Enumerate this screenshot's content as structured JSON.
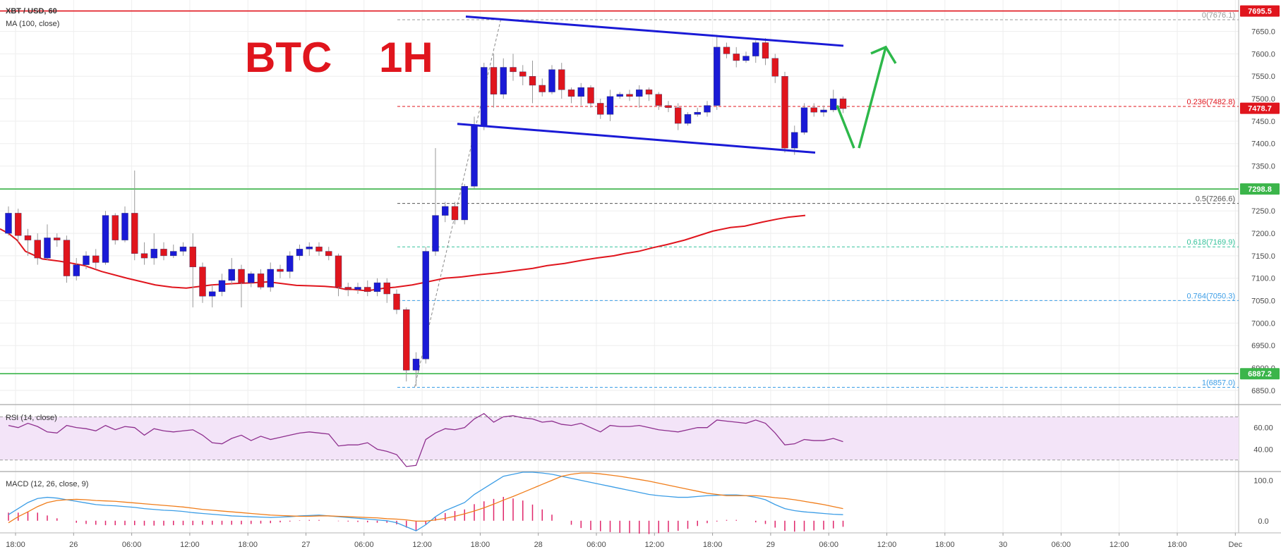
{
  "symbol_label": "XBT / USD, 60",
  "ma_label": "MA (100, close)",
  "annotation_text": "BTC    1H",
  "rsi_label": "RSI (14, close)",
  "macd_label": "MACD (12, 26, close, 9)",
  "colors": {
    "bull": "#1a1ad6",
    "bear": "#e0151d",
    "ma": "#e0151d",
    "support_resistance": "#3bb54a",
    "channel": "#1a1ad6",
    "arrow": "#2db84a",
    "rsi_line": "#8e2f8e",
    "rsi_band": "#f3e4f8",
    "macd_line": "#3b9de6",
    "signal_line": "#f07d1a",
    "hist": "#e0266b"
  },
  "chart_data": {
    "type": "candlestick",
    "x_tick_labels": [
      "18:00",
      "26",
      "06:00",
      "12:00",
      "18:00",
      "27",
      "06:00",
      "12:00",
      "18:00",
      "28",
      "06:00",
      "12:00",
      "18:00",
      "29",
      "06:00",
      "12:00",
      "18:00",
      "30",
      "06:00",
      "12:00",
      "18:00",
      "Dec"
    ],
    "price_axis": {
      "ylim": [
        6820,
        7720
      ],
      "ticks": [
        6850,
        6900,
        6950,
        7000,
        7050,
        7100,
        7150,
        7200,
        7250,
        7300,
        7350,
        7400,
        7450,
        7500,
        7550,
        7600,
        7650
      ]
    },
    "price_tags": [
      {
        "value": 7695.5,
        "label": "7695.5",
        "color": "#e0151d"
      },
      {
        "value": 7478.7,
        "label": "7478.7",
        "color": "#e0151d"
      },
      {
        "value": 7298.8,
        "label": "7298.8",
        "color": "#3bb54a"
      },
      {
        "value": 6887.2,
        "label": "6887.2",
        "color": "#3bb54a"
      }
    ],
    "horizontal_lines": [
      {
        "value": 7695.5,
        "color": "#e0151d"
      },
      {
        "value": 7298.8,
        "color": "#3bb54a"
      },
      {
        "value": 6887.2,
        "color": "#3bb54a"
      }
    ],
    "fib_levels": [
      {
        "label": "0(7676.1)",
        "value": 7676.1,
        "color": "#999999"
      },
      {
        "label": "0.236(7482.8)",
        "value": 7482.8,
        "color": "#e0151d"
      },
      {
        "label": "0.5(7266.6)",
        "value": 7266.6,
        "color": "#555555"
      },
      {
        "label": "0.618(7169.9)",
        "value": 7169.9,
        "color": "#35c29a"
      },
      {
        "label": "0.764(7050.3)",
        "value": 7050.3,
        "color": "#3b9de6"
      },
      {
        "label": "1(6857.0)",
        "value": 6857.0,
        "color": "#3b9de6"
      }
    ],
    "candles": [
      [
        7200,
        7245,
        7195,
        7260
      ],
      [
        7245,
        7195,
        7180,
        7255
      ],
      [
        7195,
        7185,
        7150,
        7210
      ],
      [
        7185,
        7145,
        7130,
        7200
      ],
      [
        7145,
        7190,
        7140,
        7220
      ],
      [
        7190,
        7185,
        7170,
        7200
      ],
      [
        7185,
        7105,
        7090,
        7195
      ],
      [
        7105,
        7130,
        7095,
        7145
      ],
      [
        7130,
        7150,
        7120,
        7160
      ],
      [
        7150,
        7135,
        7120,
        7165
      ],
      [
        7135,
        7240,
        7130,
        7250
      ],
      [
        7240,
        7185,
        7175,
        7245
      ],
      [
        7185,
        7245,
        7180,
        7260
      ],
      [
        7245,
        7155,
        7140,
        7340
      ],
      [
        7155,
        7145,
        7130,
        7180
      ],
      [
        7145,
        7165,
        7130,
        7200
      ],
      [
        7165,
        7150,
        7140,
        7180
      ],
      [
        7150,
        7160,
        7145,
        7175
      ],
      [
        7160,
        7170,
        7150,
        7180
      ],
      [
        7170,
        7125,
        7035,
        7200
      ],
      [
        7125,
        7060,
        7045,
        7135
      ],
      [
        7060,
        7070,
        7035,
        7085
      ],
      [
        7070,
        7095,
        7060,
        7110
      ],
      [
        7095,
        7120,
        7085,
        7145
      ],
      [
        7120,
        7090,
        7035,
        7130
      ],
      [
        7090,
        7110,
        7080,
        7115
      ],
      [
        7110,
        7080,
        7075,
        7120
      ],
      [
        7080,
        7120,
        7070,
        7135
      ],
      [
        7120,
        7115,
        7100,
        7130
      ],
      [
        7115,
        7150,
        7100,
        7160
      ],
      [
        7150,
        7165,
        7140,
        7175
      ],
      [
        7165,
        7170,
        7150,
        7180
      ],
      [
        7170,
        7160,
        7150,
        7180
      ],
      [
        7160,
        7150,
        7140,
        7170
      ],
      [
        7150,
        7080,
        7060,
        7155
      ],
      [
        7080,
        7075,
        7060,
        7090
      ],
      [
        7075,
        7080,
        7065,
        7090
      ],
      [
        7080,
        7070,
        7060,
        7095
      ],
      [
        7070,
        7090,
        7060,
        7100
      ],
      [
        7090,
        7065,
        7045,
        7100
      ],
      [
        7065,
        7030,
        7020,
        7075
      ],
      [
        7030,
        6895,
        6870,
        7035
      ],
      [
        6895,
        6920,
        6860,
        6935
      ],
      [
        6920,
        7160,
        6910,
        7170
      ],
      [
        7160,
        7240,
        7150,
        7390
      ],
      [
        7240,
        7260,
        7225,
        7270
      ],
      [
        7260,
        7230,
        7220,
        7270
      ],
      [
        7230,
        7305,
        7220,
        7310
      ],
      [
        7305,
        7440,
        7300,
        7460
      ],
      [
        7440,
        7570,
        7430,
        7580
      ],
      [
        7570,
        7510,
        7480,
        7600
      ],
      [
        7510,
        7570,
        7500,
        7590
      ],
      [
        7570,
        7560,
        7540,
        7600
      ],
      [
        7560,
        7550,
        7530,
        7575
      ],
      [
        7550,
        7530,
        7490,
        7585
      ],
      [
        7530,
        7515,
        7505,
        7545
      ],
      [
        7515,
        7565,
        7510,
        7575
      ],
      [
        7565,
        7520,
        7500,
        7580
      ],
      [
        7520,
        7505,
        7490,
        7525
      ],
      [
        7505,
        7525,
        7485,
        7535
      ],
      [
        7525,
        7490,
        7480,
        7530
      ],
      [
        7490,
        7465,
        7455,
        7500
      ],
      [
        7465,
        7505,
        7450,
        7520
      ],
      [
        7505,
        7510,
        7500,
        7515
      ],
      [
        7510,
        7505,
        7495,
        7520
      ],
      [
        7505,
        7520,
        7480,
        7530
      ],
      [
        7520,
        7510,
        7495,
        7525
      ],
      [
        7510,
        7485,
        7475,
        7515
      ],
      [
        7485,
        7480,
        7470,
        7495
      ],
      [
        7480,
        7445,
        7430,
        7490
      ],
      [
        7445,
        7465,
        7440,
        7470
      ],
      [
        7465,
        7470,
        7460,
        7480
      ],
      [
        7470,
        7485,
        7460,
        7495
      ],
      [
        7485,
        7615,
        7475,
        7640
      ],
      [
        7615,
        7600,
        7590,
        7625
      ],
      [
        7600,
        7585,
        7570,
        7615
      ],
      [
        7585,
        7595,
        7580,
        7605
      ],
      [
        7595,
        7625,
        7580,
        7630
      ],
      [
        7625,
        7590,
        7575,
        7635
      ],
      [
        7590,
        7550,
        7535,
        7600
      ],
      [
        7550,
        7390,
        7380,
        7560
      ],
      [
        7390,
        7425,
        7375,
        7440
      ],
      [
        7425,
        7480,
        7420,
        7490
      ],
      [
        7480,
        7470,
        7460,
        7490
      ],
      [
        7470,
        7475,
        7460,
        7485
      ],
      [
        7475,
        7500,
        7470,
        7520
      ],
      [
        7500,
        7478,
        7468,
        7505
      ]
    ],
    "ma100": [
      [
        0,
        7210
      ],
      [
        12,
        7200
      ],
      [
        24,
        7185
      ],
      [
        36,
        7160
      ],
      [
        60,
        7143
      ],
      [
        84,
        7138
      ],
      [
        96,
        7135
      ],
      [
        120,
        7128
      ],
      [
        144,
        7115
      ],
      [
        180,
        7100
      ],
      [
        220,
        7085
      ],
      [
        244,
        7080
      ],
      [
        264,
        7078
      ],
      [
        300,
        7085
      ],
      [
        330,
        7088
      ],
      [
        360,
        7090
      ],
      [
        380,
        7092
      ],
      [
        400,
        7088
      ],
      [
        420,
        7084
      ],
      [
        440,
        7083
      ],
      [
        460,
        7082
      ],
      [
        475,
        7080
      ],
      [
        490,
        7075
      ],
      [
        500,
        7075
      ],
      [
        520,
        7072
      ],
      [
        545,
        7078
      ],
      [
        560,
        7080
      ],
      [
        584,
        7085
      ],
      [
        606,
        7092
      ],
      [
        630,
        7100
      ],
      [
        654,
        7103
      ],
      [
        680,
        7108
      ],
      [
        705,
        7112
      ],
      [
        730,
        7117
      ],
      [
        755,
        7122
      ],
      [
        775,
        7128
      ],
      [
        800,
        7133
      ],
      [
        825,
        7140
      ],
      [
        845,
        7145
      ],
      [
        870,
        7150
      ],
      [
        885,
        7155
      ],
      [
        905,
        7160
      ],
      [
        925,
        7168
      ],
      [
        945,
        7175
      ],
      [
        970,
        7185
      ],
      [
        990,
        7195
      ],
      [
        1010,
        7205
      ],
      [
        1035,
        7213
      ],
      [
        1055,
        7216
      ],
      [
        1080,
        7225
      ],
      [
        1102,
        7232
      ],
      [
        1117,
        7236
      ],
      [
        1141,
        7240
      ]
    ],
    "channel_upper": {
      "from": [
        660,
        7683
      ],
      "to": [
        1195,
        7618
      ]
    },
    "channel_lower": {
      "from": [
        648,
        7444
      ],
      "to": [
        1155,
        7380
      ]
    },
    "arrow": {
      "start": [
        1186,
        7485
      ],
      "dip": [
        1210,
        7390
      ],
      "rise_start": [
        1217,
        7390
      ],
      "tip": [
        1255,
        7615
      ]
    },
    "rsi": {
      "ylim": [
        20,
        80
      ],
      "band": [
        30,
        70
      ],
      "ticks": [
        40.0,
        60.0
      ],
      "values": [
        62,
        60,
        64,
        61,
        56,
        55,
        62,
        60,
        59,
        57,
        62,
        58,
        61,
        60,
        53,
        59,
        57,
        56,
        57,
        58,
        53,
        46,
        45,
        50,
        53,
        48,
        52,
        49,
        51,
        53,
        55,
        56,
        55,
        54,
        43,
        44,
        44,
        46,
        40,
        38,
        35,
        24,
        25,
        49,
        55,
        59,
        58,
        60,
        68,
        73,
        65,
        70,
        71,
        69,
        68,
        65,
        66,
        63,
        62,
        64,
        60,
        56,
        62,
        61,
        61,
        62,
        60,
        58,
        57,
        56,
        58,
        60,
        60,
        67,
        66,
        65,
        64,
        67,
        64,
        55,
        44,
        45,
        49,
        48,
        48,
        50,
        47
      ]
    },
    "macd": {
      "ylim": [
        -30,
        120
      ],
      "ticks": [
        0.0,
        100.0
      ],
      "macd_line": [
        15,
        30,
        45,
        55,
        58,
        56,
        52,
        48,
        44,
        40,
        38,
        37,
        35,
        33,
        30,
        28,
        26,
        25,
        23,
        20,
        18,
        16,
        14,
        12,
        11,
        10,
        9,
        8,
        9,
        10,
        12,
        13,
        14,
        12,
        10,
        8,
        6,
        4,
        2,
        0,
        -5,
        -15,
        -25,
        -10,
        10,
        25,
        35,
        45,
        65,
        80,
        95,
        110,
        115,
        120,
        120,
        118,
        115,
        110,
        105,
        100,
        95,
        90,
        85,
        80,
        75,
        70,
        65,
        62,
        60,
        58,
        58,
        60,
        62,
        63,
        64,
        64,
        62,
        58,
        52,
        40,
        30,
        25,
        22,
        20,
        18,
        16,
        15
      ],
      "signal_line": [
        -5,
        10,
        22,
        35,
        45,
        50,
        52,
        53,
        52,
        50,
        49,
        48,
        46,
        44,
        42,
        40,
        38,
        36,
        34,
        31,
        28,
        26,
        24,
        22,
        20,
        18,
        16,
        14,
        13,
        12,
        11,
        11,
        12,
        12,
        11,
        10,
        9,
        8,
        7,
        5,
        4,
        2,
        -1,
        -1,
        2,
        6,
        11,
        17,
        24,
        32,
        41,
        51,
        60,
        70,
        80,
        90,
        100,
        110,
        115,
        118,
        118,
        116,
        113,
        110,
        106,
        102,
        98,
        93,
        88,
        83,
        78,
        73,
        68,
        65,
        62,
        62,
        62,
        62,
        60,
        57,
        55,
        52,
        48,
        44,
        40,
        35,
        30
      ],
      "histogram": [
        20,
        20,
        23,
        20,
        13,
        6,
        0,
        -5,
        -8,
        -10,
        -11,
        -11,
        -11,
        -11,
        -12,
        -12,
        -12,
        -11,
        -11,
        -11,
        -10,
        -10,
        -10,
        -10,
        -9,
        -8,
        -7,
        -6,
        -4,
        -2,
        1,
        2,
        2,
        0,
        -1,
        -2,
        -3,
        -4,
        -5,
        -5,
        -9,
        -17,
        -24,
        -9,
        8,
        19,
        24,
        28,
        41,
        48,
        54,
        59,
        55,
        50,
        40,
        28,
        15,
        0,
        -10,
        -18,
        -23,
        -26,
        -28,
        -30,
        -31,
        -32,
        -33,
        -31,
        -28,
        -25,
        -20,
        -13,
        -6,
        -2,
        2,
        2,
        0,
        -4,
        -8,
        -17,
        -25,
        -27,
        -26,
        -24,
        -22,
        -19,
        -15
      ]
    }
  }
}
